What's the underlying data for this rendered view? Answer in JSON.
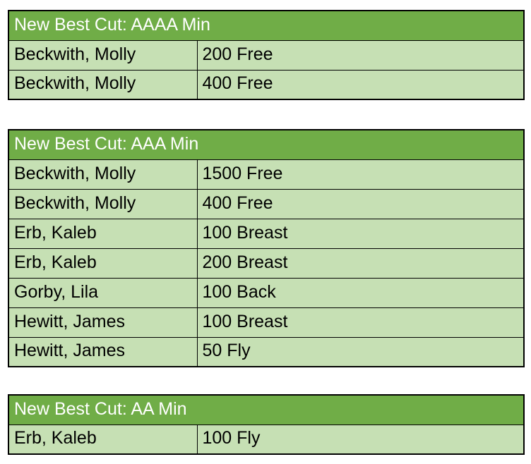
{
  "colors": {
    "header_bg": "#70AD47",
    "header_text": "#FFFFFF",
    "row_bg": "#C6E0B4",
    "row_text": "#000000",
    "border": "#000000",
    "page_bg": "#FFFFFF"
  },
  "columns": [
    "swimmer_name",
    "event"
  ],
  "tables": [
    {
      "header": "New Best Cut: AAAA Min",
      "rows": [
        {
          "name": "Beckwith, Molly",
          "event": "200 Free"
        },
        {
          "name": "Beckwith, Molly",
          "event": "400 Free"
        }
      ]
    },
    {
      "header": "New Best Cut: AAA Min",
      "rows": [
        {
          "name": "Beckwith, Molly",
          "event": "1500 Free"
        },
        {
          "name": "Beckwith, Molly",
          "event": "400 Free"
        },
        {
          "name": "Erb, Kaleb",
          "event": "100 Breast"
        },
        {
          "name": "Erb, Kaleb",
          "event": "200 Breast"
        },
        {
          "name": "Gorby, Lila",
          "event": "100 Back"
        },
        {
          "name": "Hewitt, James",
          "event": "100 Breast"
        },
        {
          "name": "Hewitt, James",
          "event": "50 Fly"
        }
      ]
    },
    {
      "header": "New Best Cut: AA Min",
      "rows": [
        {
          "name": "Erb, Kaleb",
          "event": "100 Fly"
        }
      ]
    }
  ]
}
